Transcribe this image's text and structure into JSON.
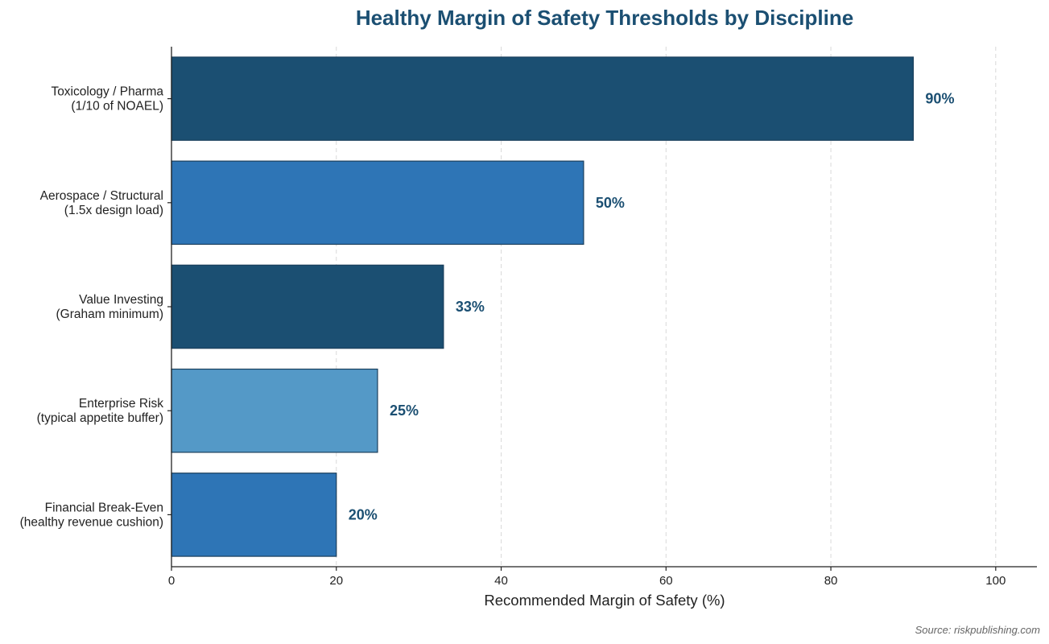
{
  "chart_data": {
    "type": "bar",
    "orientation": "horizontal",
    "title": "Healthy Margin of Safety Thresholds by Discipline",
    "xlabel": "Recommended Margin of Safety (%)",
    "ylabel": "",
    "xlim": [
      0,
      105
    ],
    "xticks": [
      0,
      20,
      40,
      60,
      80,
      100
    ],
    "grid": "vertical dashed",
    "categories": [
      [
        "Toxicology / Pharma",
        "(1/10 of NOAEL)"
      ],
      [
        "Aerospace / Structural",
        "(1.5x design load)"
      ],
      [
        "Value Investing",
        "(Graham minimum)"
      ],
      [
        "Enterprise Risk",
        "(typical appetite buffer)"
      ],
      [
        "Financial Break-Even",
        "(healthy revenue cushion)"
      ]
    ],
    "values": [
      90,
      50,
      33,
      25,
      20
    ],
    "value_labels": [
      "90%",
      "50%",
      "33%",
      "25%",
      "20%"
    ],
    "bar_colors": [
      "#1b4f72",
      "#2e75b6",
      "#1b4f72",
      "#5499c7",
      "#2e75b6"
    ],
    "source": "Source: riskpublishing.com"
  }
}
